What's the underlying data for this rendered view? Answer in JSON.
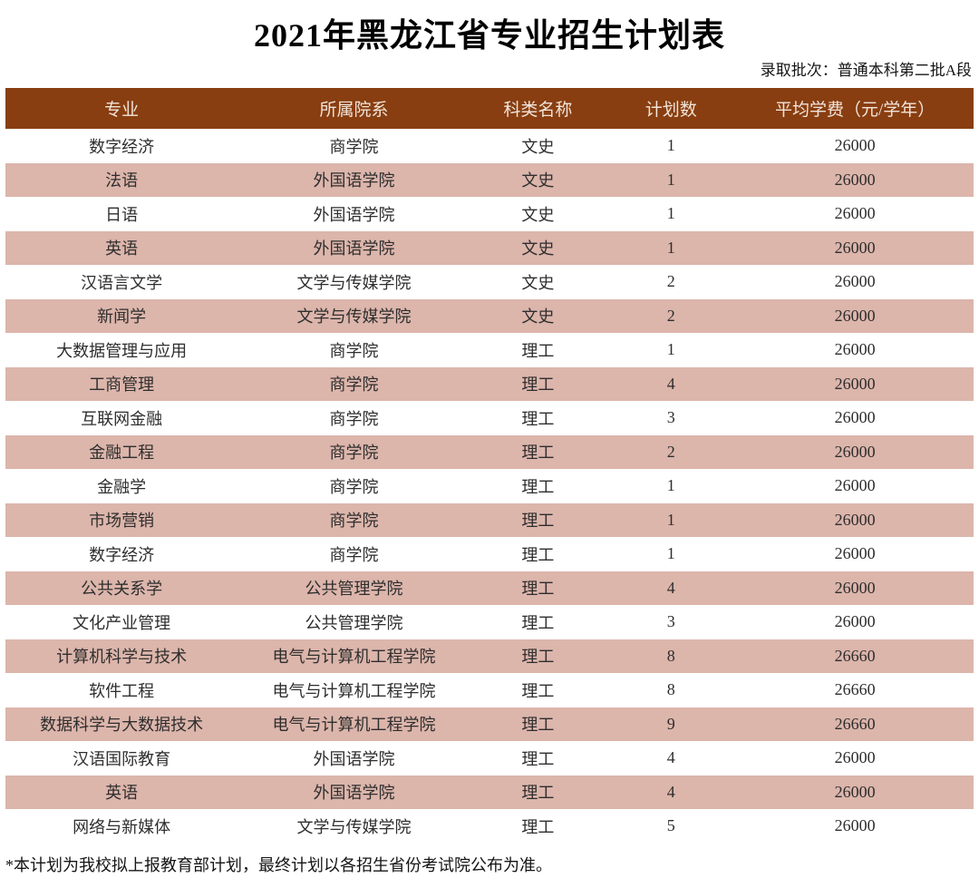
{
  "page": {
    "title": "2021年黑龙江省专业招生计划表",
    "batch_label": "录取批次：普通本科第二批A段",
    "footnote": "*本计划为我校拟上报教育部计划，最终计划以各招生省份考试院公布为准。"
  },
  "colors": {
    "header_bg": "#883E10",
    "header_text": "#F2E4DA",
    "stripe_bg": "#DCB5AB",
    "body_text": "#2E2E2E"
  },
  "chart_data": {
    "type": "table",
    "title": "2021年黑龙江省专业招生计划表",
    "columns": [
      "专业",
      "所属院系",
      "科类名称",
      "计划数",
      "平均学费（元/学年）"
    ],
    "rows": [
      [
        "数字经济",
        "商学院",
        "文史",
        "1",
        "26000"
      ],
      [
        "法语",
        "外国语学院",
        "文史",
        "1",
        "26000"
      ],
      [
        "日语",
        "外国语学院",
        "文史",
        "1",
        "26000"
      ],
      [
        "英语",
        "外国语学院",
        "文史",
        "1",
        "26000"
      ],
      [
        "汉语言文学",
        "文学与传媒学院",
        "文史",
        "2",
        "26000"
      ],
      [
        "新闻学",
        "文学与传媒学院",
        "文史",
        "2",
        "26000"
      ],
      [
        "大数据管理与应用",
        "商学院",
        "理工",
        "1",
        "26000"
      ],
      [
        "工商管理",
        "商学院",
        "理工",
        "4",
        "26000"
      ],
      [
        "互联网金融",
        "商学院",
        "理工",
        "3",
        "26000"
      ],
      [
        "金融工程",
        "商学院",
        "理工",
        "2",
        "26000"
      ],
      [
        "金融学",
        "商学院",
        "理工",
        "1",
        "26000"
      ],
      [
        "市场营销",
        "商学院",
        "理工",
        "1",
        "26000"
      ],
      [
        "数字经济",
        "商学院",
        "理工",
        "1",
        "26000"
      ],
      [
        "公共关系学",
        "公共管理学院",
        "理工",
        "4",
        "26000"
      ],
      [
        "文化产业管理",
        "公共管理学院",
        "理工",
        "3",
        "26000"
      ],
      [
        "计算机科学与技术",
        "电气与计算机工程学院",
        "理工",
        "8",
        "26660"
      ],
      [
        "软件工程",
        "电气与计算机工程学院",
        "理工",
        "8",
        "26660"
      ],
      [
        "数据科学与大数据技术",
        "电气与计算机工程学院",
        "理工",
        "9",
        "26660"
      ],
      [
        "汉语国际教育",
        "外国语学院",
        "理工",
        "4",
        "26000"
      ],
      [
        "英语",
        "外国语学院",
        "理工",
        "4",
        "26000"
      ],
      [
        "网络与新媒体",
        "文学与传媒学院",
        "理工",
        "5",
        "26000"
      ]
    ]
  }
}
